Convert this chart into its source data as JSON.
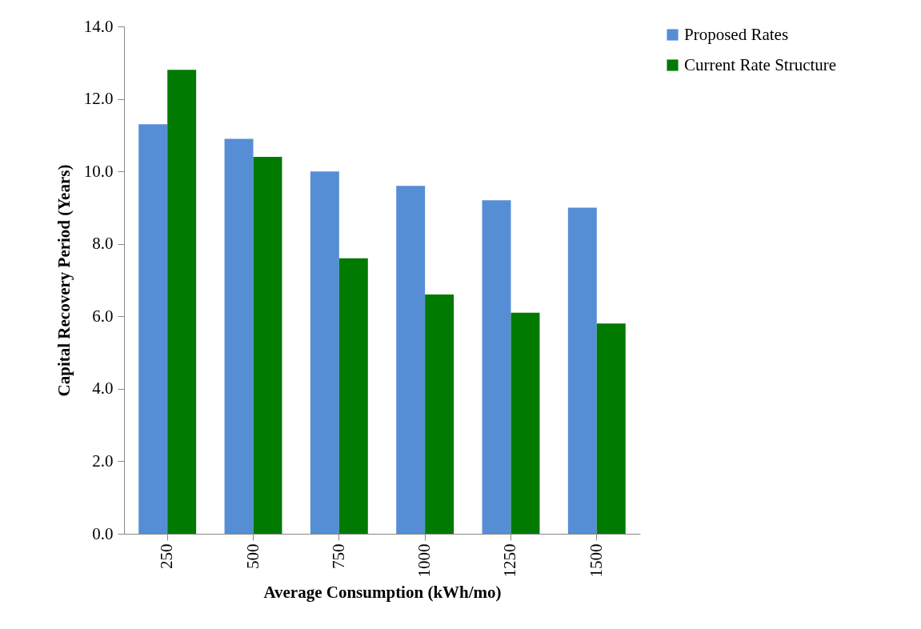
{
  "chart_data": {
    "type": "bar",
    "xlabel": "Average Consumption (kWh/mo)",
    "ylabel": "Capital Recovery Period (Years)",
    "categories": [
      "250",
      "500",
      "750",
      "1000",
      "1250",
      "1500"
    ],
    "series": [
      {
        "name": "Proposed Rates",
        "color": "#558ed5",
        "values": [
          11.3,
          10.9,
          10.0,
          9.6,
          9.2,
          9.0
        ]
      },
      {
        "name": "Current Rate Structure",
        "color": "#007a00",
        "values": [
          12.8,
          10.4,
          7.6,
          6.6,
          6.1,
          5.8
        ]
      }
    ],
    "ylim": [
      0,
      14
    ],
    "yticks": [
      {
        "value": 0,
        "label": "0.0"
      },
      {
        "value": 2,
        "label": "2.0"
      },
      {
        "value": 4,
        "label": "4.0"
      },
      {
        "value": 6,
        "label": "6.0"
      },
      {
        "value": 8,
        "label": "8.0"
      },
      {
        "value": 10,
        "label": "10.0"
      },
      {
        "value": 12,
        "label": "12.0"
      },
      {
        "value": 14,
        "label": "14.0"
      }
    ],
    "grid": false,
    "legend": "right"
  }
}
